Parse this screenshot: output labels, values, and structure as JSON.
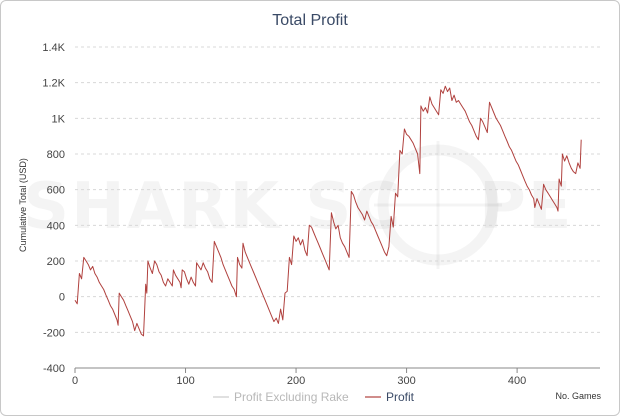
{
  "watermark": {
    "left": "SHARK SC",
    "right": "PE"
  },
  "chart_data": {
    "type": "line",
    "title": "Total Profit",
    "ylabel": "Cumulative Total (USD)",
    "xlabel": "No. Games",
    "xlim": [
      0,
      475
    ],
    "ylim": [
      -400,
      1400
    ],
    "x_ticks": [
      0,
      100,
      200,
      300,
      400
    ],
    "y_ticks": [
      {
        "value": -400,
        "label": "-400"
      },
      {
        "value": -200,
        "label": "-200"
      },
      {
        "value": 0,
        "label": "0"
      },
      {
        "value": 200,
        "label": "200"
      },
      {
        "value": 400,
        "label": "400"
      },
      {
        "value": 600,
        "label": "600"
      },
      {
        "value": 800,
        "label": "800"
      },
      {
        "value": 1000,
        "label": "1K"
      },
      {
        "value": 1200,
        "label": "1.2K"
      },
      {
        "value": 1400,
        "label": "1.4K"
      }
    ],
    "grid": true,
    "legend_position": "bottom",
    "series": [
      {
        "name": "Profit Excluding Rake",
        "color": "#cccccc",
        "visible": false,
        "points": []
      },
      {
        "name": "Profit",
        "color": "#b0413e",
        "visible": true,
        "points": [
          [
            0,
            -20
          ],
          [
            2,
            -40
          ],
          [
            4,
            130
          ],
          [
            6,
            100
          ],
          [
            8,
            220
          ],
          [
            10,
            200
          ],
          [
            12,
            180
          ],
          [
            14,
            150
          ],
          [
            16,
            170
          ],
          [
            18,
            130
          ],
          [
            20,
            110
          ],
          [
            22,
            80
          ],
          [
            24,
            60
          ],
          [
            26,
            40
          ],
          [
            28,
            10
          ],
          [
            30,
            -20
          ],
          [
            32,
            -50
          ],
          [
            34,
            -70
          ],
          [
            36,
            -100
          ],
          [
            38,
            -130
          ],
          [
            39,
            -160
          ],
          [
            40,
            20
          ],
          [
            42,
            0
          ],
          [
            44,
            -20
          ],
          [
            46,
            -50
          ],
          [
            48,
            -80
          ],
          [
            50,
            -110
          ],
          [
            52,
            -140
          ],
          [
            54,
            -190
          ],
          [
            56,
            -150
          ],
          [
            58,
            -180
          ],
          [
            60,
            -210
          ],
          [
            62,
            -220
          ],
          [
            63,
            -80
          ],
          [
            64,
            70
          ],
          [
            65,
            20
          ],
          [
            66,
            200
          ],
          [
            68,
            160
          ],
          [
            70,
            130
          ],
          [
            72,
            200
          ],
          [
            74,
            180
          ],
          [
            76,
            140
          ],
          [
            78,
            120
          ],
          [
            80,
            80
          ],
          [
            82,
            60
          ],
          [
            84,
            100
          ],
          [
            86,
            80
          ],
          [
            88,
            60
          ],
          [
            89,
            150
          ],
          [
            91,
            120
          ],
          [
            93,
            100
          ],
          [
            95,
            80
          ],
          [
            96,
            50
          ],
          [
            97,
            150
          ],
          [
            99,
            140
          ],
          [
            101,
            100
          ],
          [
            103,
            70
          ],
          [
            105,
            110
          ],
          [
            107,
            80
          ],
          [
            109,
            60
          ],
          [
            110,
            190
          ],
          [
            112,
            170
          ],
          [
            114,
            150
          ],
          [
            116,
            190
          ],
          [
            118,
            160
          ],
          [
            120,
            140
          ],
          [
            122,
            100
          ],
          [
            124,
            80
          ],
          [
            126,
            310
          ],
          [
            128,
            280
          ],
          [
            130,
            250
          ],
          [
            132,
            220
          ],
          [
            134,
            180
          ],
          [
            136,
            150
          ],
          [
            138,
            120
          ],
          [
            140,
            90
          ],
          [
            142,
            60
          ],
          [
            144,
            40
          ],
          [
            146,
            0
          ],
          [
            147,
            220
          ],
          [
            149,
            180
          ],
          [
            151,
            160
          ],
          [
            152,
            300
          ],
          [
            154,
            250
          ],
          [
            156,
            220
          ],
          [
            158,
            190
          ],
          [
            160,
            160
          ],
          [
            162,
            130
          ],
          [
            164,
            100
          ],
          [
            166,
            70
          ],
          [
            168,
            40
          ],
          [
            170,
            10
          ],
          [
            172,
            -20
          ],
          [
            174,
            -50
          ],
          [
            176,
            -80
          ],
          [
            178,
            -110
          ],
          [
            180,
            -140
          ],
          [
            182,
            -120
          ],
          [
            184,
            -150
          ],
          [
            186,
            -70
          ],
          [
            188,
            -130
          ],
          [
            190,
            20
          ],
          [
            192,
            30
          ],
          [
            194,
            220
          ],
          [
            196,
            180
          ],
          [
            198,
            340
          ],
          [
            200,
            310
          ],
          [
            202,
            330
          ],
          [
            204,
            290
          ],
          [
            206,
            320
          ],
          [
            208,
            260
          ],
          [
            210,
            230
          ],
          [
            212,
            400
          ],
          [
            214,
            390
          ],
          [
            216,
            360
          ],
          [
            218,
            330
          ],
          [
            220,
            300
          ],
          [
            222,
            270
          ],
          [
            224,
            240
          ],
          [
            226,
            210
          ],
          [
            228,
            180
          ],
          [
            230,
            150
          ],
          [
            232,
            470
          ],
          [
            234,
            420
          ],
          [
            236,
            380
          ],
          [
            238,
            400
          ],
          [
            240,
            330
          ],
          [
            242,
            300
          ],
          [
            244,
            280
          ],
          [
            246,
            250
          ],
          [
            248,
            220
          ],
          [
            250,
            590
          ],
          [
            252,
            570
          ],
          [
            254,
            530
          ],
          [
            256,
            500
          ],
          [
            258,
            480
          ],
          [
            260,
            460
          ],
          [
            262,
            430
          ],
          [
            264,
            480
          ],
          [
            266,
            450
          ],
          [
            268,
            420
          ],
          [
            270,
            400
          ],
          [
            272,
            370
          ],
          [
            274,
            340
          ],
          [
            276,
            310
          ],
          [
            278,
            280
          ],
          [
            280,
            250
          ],
          [
            282,
            230
          ],
          [
            284,
            280
          ],
          [
            286,
            450
          ],
          [
            288,
            390
          ],
          [
            290,
            580
          ],
          [
            292,
            560
          ],
          [
            294,
            820
          ],
          [
            296,
            800
          ],
          [
            298,
            940
          ],
          [
            300,
            910
          ],
          [
            302,
            900
          ],
          [
            304,
            880
          ],
          [
            306,
            860
          ],
          [
            308,
            830
          ],
          [
            310,
            800
          ],
          [
            312,
            690
          ],
          [
            313,
            1070
          ],
          [
            315,
            1040
          ],
          [
            317,
            1060
          ],
          [
            319,
            1030
          ],
          [
            321,
            1120
          ],
          [
            323,
            1080
          ],
          [
            325,
            1060
          ],
          [
            327,
            1040
          ],
          [
            329,
            1020
          ],
          [
            331,
            1160
          ],
          [
            333,
            1140
          ],
          [
            335,
            1180
          ],
          [
            337,
            1150
          ],
          [
            339,
            1170
          ],
          [
            341,
            1100
          ],
          [
            343,
            1130
          ],
          [
            345,
            1090
          ],
          [
            347,
            1100
          ],
          [
            349,
            1080
          ],
          [
            351,
            1060
          ],
          [
            353,
            1040
          ],
          [
            355,
            1010
          ],
          [
            357,
            980
          ],
          [
            359,
            960
          ],
          [
            361,
            930
          ],
          [
            363,
            900
          ],
          [
            365,
            880
          ],
          [
            367,
            1000
          ],
          [
            369,
            980
          ],
          [
            371,
            950
          ],
          [
            373,
            920
          ],
          [
            375,
            1090
          ],
          [
            377,
            1060
          ],
          [
            379,
            1030
          ],
          [
            381,
            1000
          ],
          [
            383,
            980
          ],
          [
            385,
            960
          ],
          [
            387,
            930
          ],
          [
            389,
            900
          ],
          [
            391,
            870
          ],
          [
            393,
            840
          ],
          [
            395,
            820
          ],
          [
            397,
            790
          ],
          [
            399,
            760
          ],
          [
            401,
            740
          ],
          [
            403,
            710
          ],
          [
            405,
            680
          ],
          [
            407,
            650
          ],
          [
            409,
            620
          ],
          [
            411,
            600
          ],
          [
            413,
            570
          ],
          [
            415,
            550
          ],
          [
            416,
            500
          ],
          [
            418,
            550
          ],
          [
            420,
            520
          ],
          [
            422,
            490
          ],
          [
            424,
            630
          ],
          [
            426,
            600
          ],
          [
            428,
            580
          ],
          [
            430,
            560
          ],
          [
            432,
            540
          ],
          [
            434,
            520
          ],
          [
            436,
            500
          ],
          [
            437,
            480
          ],
          [
            438,
            660
          ],
          [
            440,
            620
          ],
          [
            441,
            800
          ],
          [
            443,
            760
          ],
          [
            445,
            790
          ],
          [
            447,
            750
          ],
          [
            449,
            720
          ],
          [
            451,
            700
          ],
          [
            453,
            690
          ],
          [
            455,
            750
          ],
          [
            457,
            720
          ],
          [
            458,
            880
          ]
        ]
      }
    ]
  }
}
